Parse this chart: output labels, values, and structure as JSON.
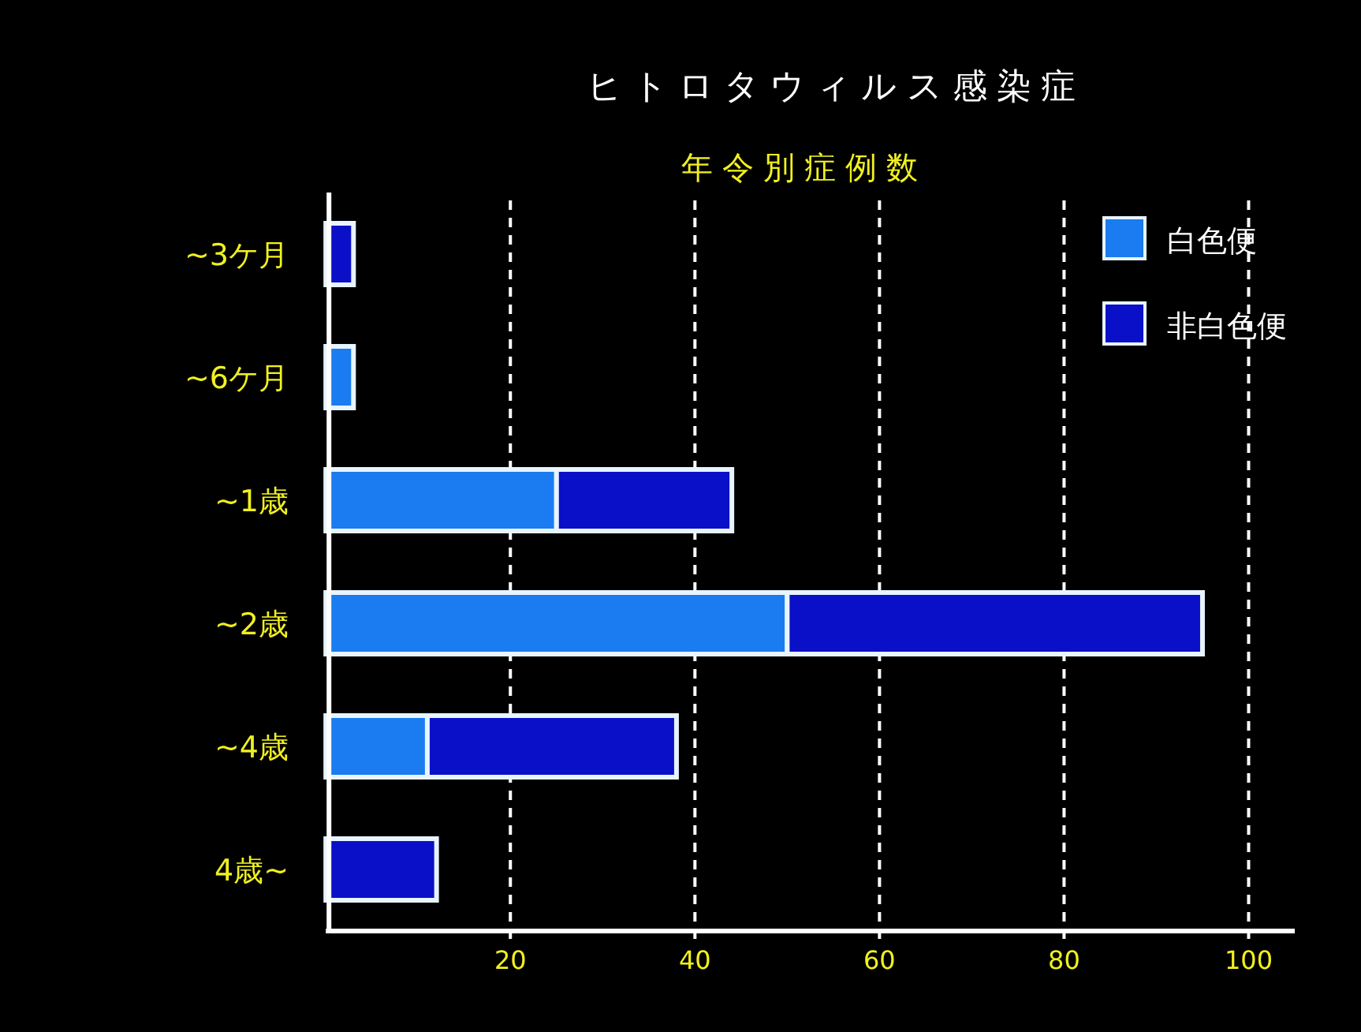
{
  "chart_data": {
    "type": "bar",
    "orientation": "horizontal",
    "stacked": true,
    "title": "ヒトロタウィルス感染症",
    "subtitle": "年令別症例数",
    "categories": [
      "~3ケ月",
      "~6ケ月",
      "~1歳",
      "~2歳",
      "~4歳",
      "4歳~"
    ],
    "series": [
      {
        "name": "白色便",
        "color": "#1a7cf0",
        "values": [
          0,
          3,
          25,
          50,
          11,
          0
        ]
      },
      {
        "name": "非白色便",
        "color": "#0a10c8",
        "values": [
          3,
          0,
          19,
          45,
          27,
          12
        ]
      }
    ],
    "xlim": [
      0,
      105
    ],
    "xticks": [
      20,
      40,
      60,
      80,
      100
    ],
    "grid": "x",
    "legend": "top right"
  }
}
